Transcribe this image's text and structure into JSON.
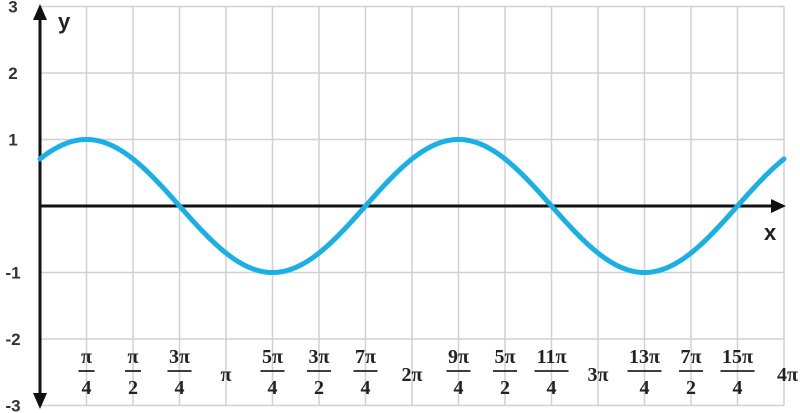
{
  "chart_data": {
    "type": "line",
    "function": "y = sin(x + π/4)",
    "xlabel": "x",
    "ylabel": "y",
    "xlim_multiples_of_pi": [
      0,
      4
    ],
    "ylim": [
      -3,
      3
    ],
    "grid": true,
    "series_color": "#1ab0e6",
    "y_ticks": [
      "3",
      "2",
      "1",
      "-1",
      "-2",
      "-3"
    ],
    "x_ticks": [
      {
        "num": "π",
        "den": "4",
        "multiple_of_pi": 0.25
      },
      {
        "num": "π",
        "den": "2",
        "multiple_of_pi": 0.5
      },
      {
        "num": "3π",
        "den": "4",
        "multiple_of_pi": 0.75
      },
      {
        "num": "π",
        "den": "",
        "multiple_of_pi": 1.0
      },
      {
        "num": "5π",
        "den": "4",
        "multiple_of_pi": 1.25
      },
      {
        "num": "3π",
        "den": "2",
        "multiple_of_pi": 1.5
      },
      {
        "num": "7π",
        "den": "4",
        "multiple_of_pi": 1.75
      },
      {
        "num": "2π",
        "den": "",
        "multiple_of_pi": 2.0
      },
      {
        "num": "9π",
        "den": "4",
        "multiple_of_pi": 2.25
      },
      {
        "num": "5π",
        "den": "2",
        "multiple_of_pi": 2.5
      },
      {
        "num": "11π",
        "den": "4",
        "multiple_of_pi": 2.75
      },
      {
        "num": "3π",
        "den": "",
        "multiple_of_pi": 3.0
      },
      {
        "num": "13π",
        "den": "4",
        "multiple_of_pi": 3.25
      },
      {
        "num": "7π",
        "den": "2",
        "multiple_of_pi": 3.5
      },
      {
        "num": "15π",
        "den": "4",
        "multiple_of_pi": 3.75
      },
      {
        "num": "4π",
        "den": "",
        "multiple_of_pi": 4.0
      }
    ],
    "key_points": [
      {
        "x_multiple_of_pi": 0,
        "y": 0.707
      },
      {
        "x_multiple_of_pi": 0.25,
        "y": 1
      },
      {
        "x_multiple_of_pi": 0.75,
        "y": 0
      },
      {
        "x_multiple_of_pi": 1.25,
        "y": -1
      },
      {
        "x_multiple_of_pi": 1.75,
        "y": 0
      },
      {
        "x_multiple_of_pi": 2.25,
        "y": 1
      },
      {
        "x_multiple_of_pi": 2.75,
        "y": 0
      },
      {
        "x_multiple_of_pi": 3.25,
        "y": -1
      },
      {
        "x_multiple_of_pi": 3.75,
        "y": 0
      },
      {
        "x_multiple_of_pi": 4.0,
        "y": 0.707
      }
    ]
  }
}
